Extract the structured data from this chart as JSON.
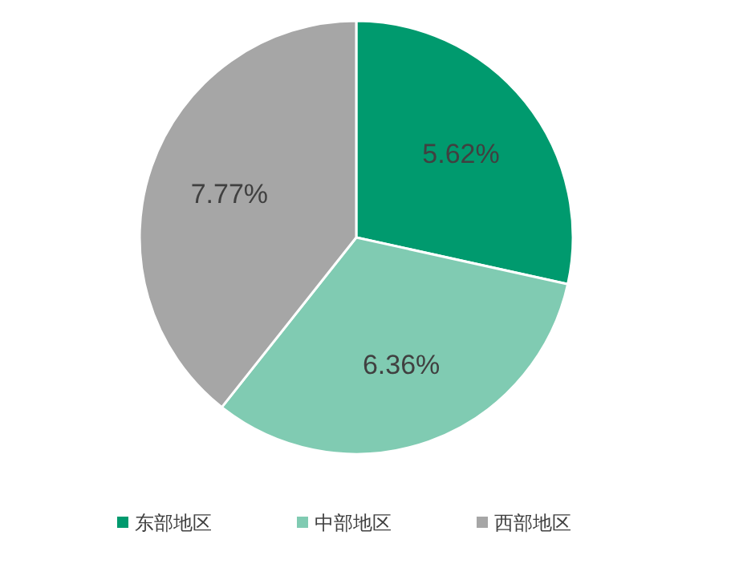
{
  "chart_data": {
    "type": "pie",
    "categories": [
      "东部地区",
      "中部地区",
      "西部地区"
    ],
    "values": [
      5.62,
      6.36,
      7.77
    ],
    "colors": [
      "#009a6e",
      "#80cbb2",
      "#a6a6a6"
    ],
    "value_labels": [
      "5.62%",
      "6.36%",
      "7.77%"
    ],
    "legend": "bottom"
  }
}
